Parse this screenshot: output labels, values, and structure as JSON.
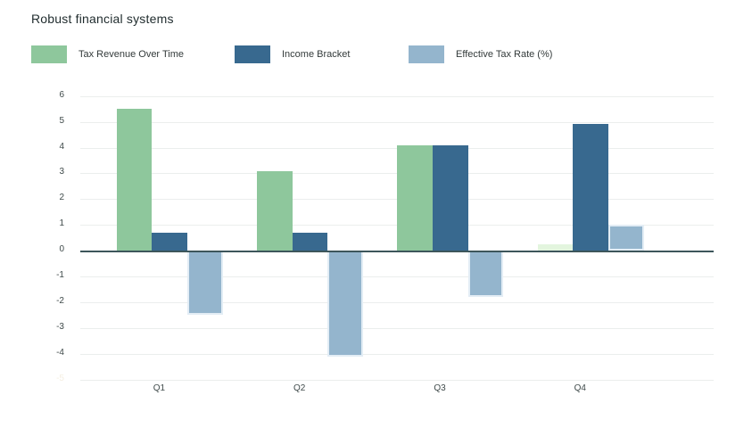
{
  "title": "Robust financial systems",
  "legend": {
    "items": [
      {
        "label": "Tax Revenue Over Time"
      },
      {
        "label": "Income Bracket"
      },
      {
        "label": "Effective Tax Rate (%)"
      }
    ]
  },
  "colors": {
    "green": "#8ec79c",
    "pale_green": "#e3f5de",
    "dark_blue": "#38698f",
    "light_blue": "#94b5cd",
    "gridline": "#ebeeed",
    "zero_line": "#3d565b",
    "axis_text": "#3f4a4a",
    "faded_tick_text": "#f5efe2",
    "title_text": "#1f2b2d"
  },
  "chart_data": {
    "type": "bar",
    "title": "Robust financial systems",
    "categories": [
      "Q1",
      "Q2",
      "Q3",
      "Q4"
    ],
    "series": [
      {
        "name": "Tax Revenue Over Time",
        "color": "#8ec79c",
        "values": [
          5.5,
          3.1,
          4.1,
          0.25
        ],
        "value_colors": [
          "#8ec79c",
          "#8ec79c",
          "#8ec79c",
          "#e3f5de"
        ]
      },
      {
        "name": "Income Bracket",
        "color": "#38698f",
        "values": [
          0.7,
          0.7,
          4.1,
          4.9
        ]
      },
      {
        "name": "Effective Tax Rate (%)",
        "color": "#94b5cd",
        "values": [
          -2.5,
          -4.1,
          -1.8,
          1.0
        ]
      }
    ],
    "xlabel": "",
    "ylabel": "",
    "ylim": [
      -5,
      6
    ],
    "yticks": [
      6,
      5,
      4,
      3,
      2,
      1,
      0,
      -1,
      -2,
      -3,
      -4,
      -5
    ],
    "ytick_labels": [
      "6",
      "5",
      "4",
      "3",
      "2",
      "1",
      "0",
      "-1",
      "-2",
      "-3",
      "-4",
      "-5"
    ],
    "faded_ytick": "-5",
    "grid": true,
    "legend_position": "top"
  }
}
